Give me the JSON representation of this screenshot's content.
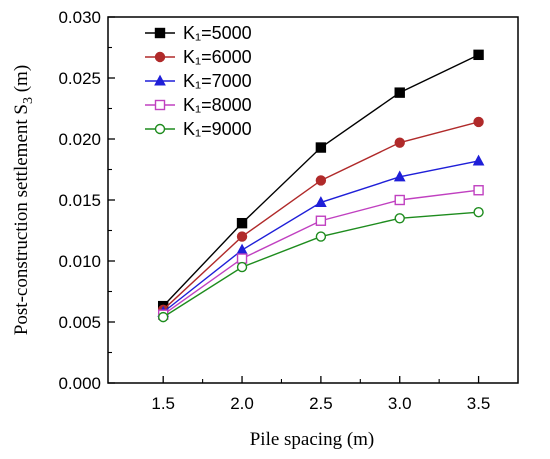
{
  "chart_data": {
    "type": "line",
    "xlabel": "Pile spacing (m)",
    "ylabel": "Post-construction settlement S",
    "ylabel_sub": "3",
    "ylabel_unit": " (m)",
    "xlim": [
      1.15,
      3.75
    ],
    "ylim": [
      0.0,
      0.03
    ],
    "xticks": [
      1.5,
      2.0,
      2.5,
      3.0,
      3.5
    ],
    "xtick_labels": [
      "1.5",
      "2.0",
      "2.5",
      "3.0",
      "3.5"
    ],
    "yticks": [
      0.0,
      0.005,
      0.01,
      0.015,
      0.02,
      0.025,
      0.03
    ],
    "ytick_labels": [
      "0.000",
      "0.005",
      "0.010",
      "0.015",
      "0.020",
      "0.025",
      "0.030"
    ],
    "grid": false,
    "legend_position": "top-left",
    "x": [
      1.5,
      2.0,
      2.5,
      3.0,
      3.5
    ],
    "series": [
      {
        "name": "K₁=5000",
        "values": [
          0.0063,
          0.0131,
          0.0193,
          0.0238,
          0.0269
        ],
        "color": "#000000",
        "marker": "filled-square"
      },
      {
        "name": "K₁=6000",
        "values": [
          0.006,
          0.012,
          0.0166,
          0.0197,
          0.0214
        ],
        "color": "#b02a2a",
        "marker": "filled-circle"
      },
      {
        "name": "K₁=7000",
        "values": [
          0.0058,
          0.0109,
          0.0148,
          0.0169,
          0.0182
        ],
        "color": "#1f1fd8",
        "marker": "filled-triangle"
      },
      {
        "name": "K₁=8000",
        "values": [
          0.0056,
          0.0102,
          0.0133,
          0.015,
          0.0158
        ],
        "color": "#c040c0",
        "marker": "open-square"
      },
      {
        "name": "K₁=9000",
        "values": [
          0.0054,
          0.0095,
          0.012,
          0.0135,
          0.014
        ],
        "color": "#1e8c1e",
        "marker": "open-circle"
      }
    ]
  }
}
